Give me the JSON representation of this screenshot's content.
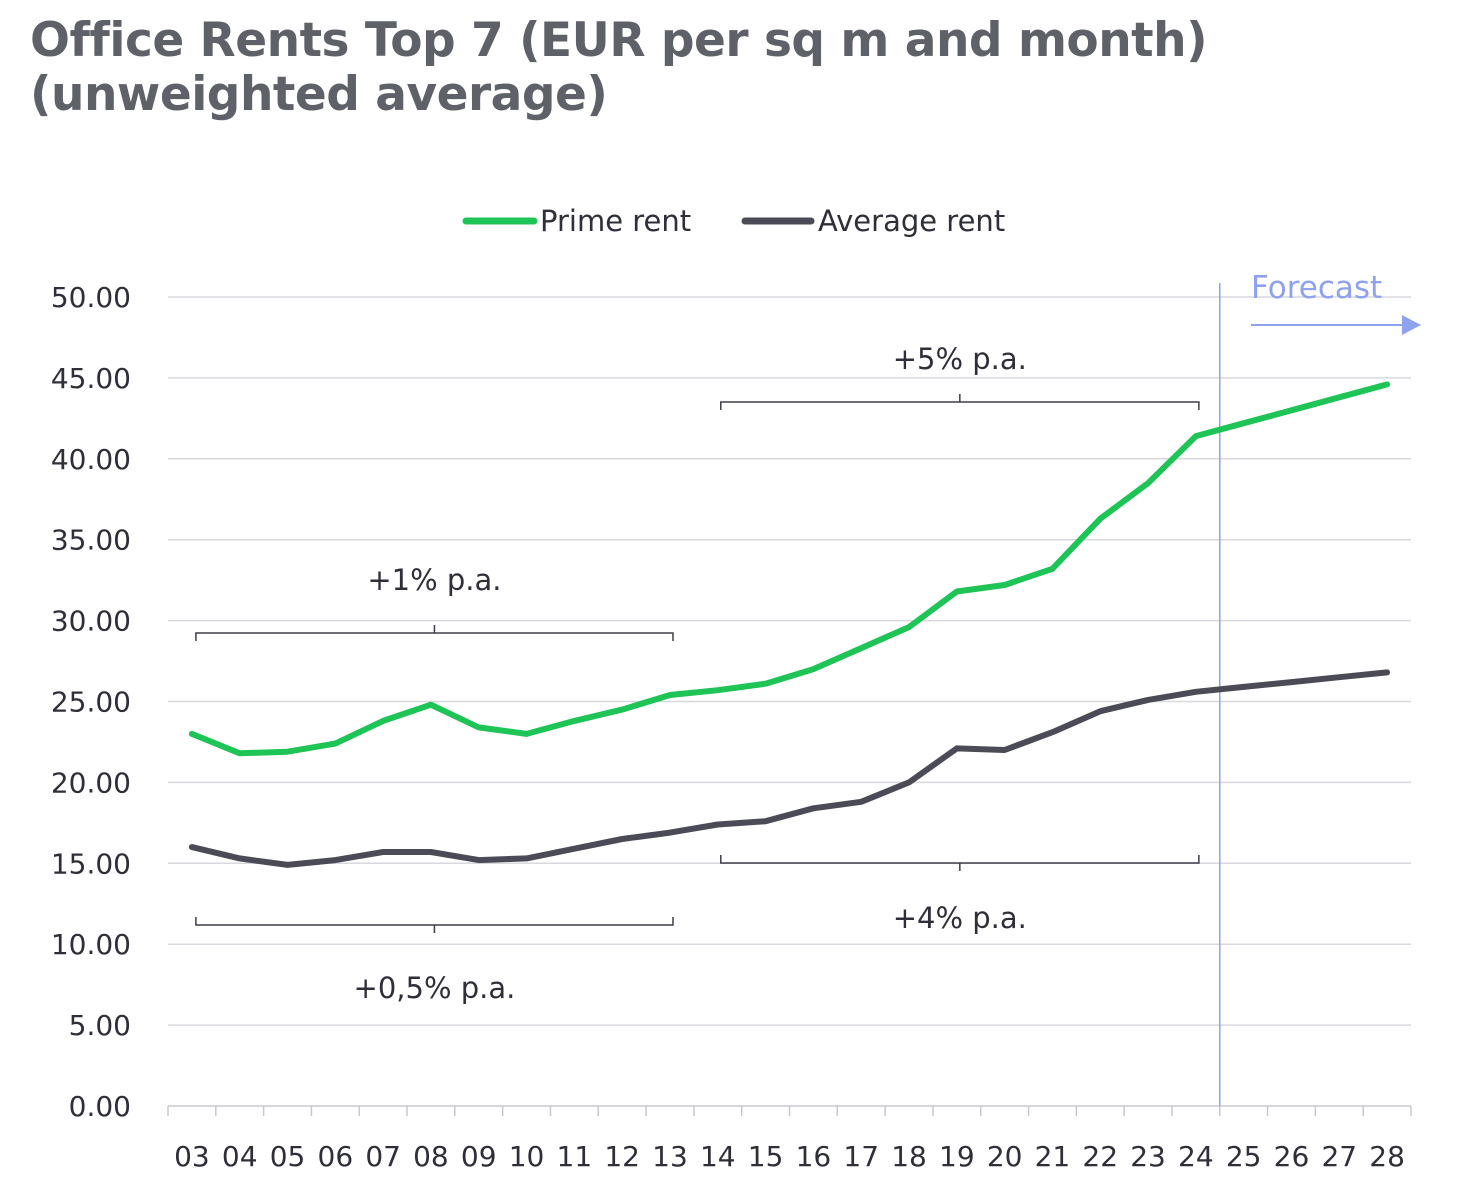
{
  "title": {
    "line1": "Office Rents Top 7 (EUR per sq m and month)",
    "line2": "(unweighted average)"
  },
  "colors": {
    "prime": "#1ec456",
    "average": "#4a4b57",
    "forecast": "#8ea2f0",
    "grid": "#d8d8de",
    "axis_text": "#2e2f38"
  },
  "chart_data": {
    "type": "line",
    "title": "Office Rents Top 7 (EUR per sq m and month) (unweighted average)",
    "xlabel": "",
    "ylabel": "",
    "ylim": [
      0,
      50
    ],
    "yticks": [
      "0.00",
      "5.00",
      "10.00",
      "15.00",
      "20.00",
      "25.00",
      "30.00",
      "35.00",
      "40.00",
      "45.00",
      "50.00"
    ],
    "categories": [
      "03",
      "04",
      "05",
      "06",
      "07",
      "08",
      "09",
      "10",
      "11",
      "12",
      "13",
      "14",
      "15",
      "16",
      "17",
      "18",
      "19",
      "20",
      "21",
      "22",
      "23",
      "24",
      "25",
      "26",
      "27",
      "28"
    ],
    "series": [
      {
        "name": "Prime rent",
        "values": [
          23.0,
          21.8,
          21.9,
          22.4,
          23.8,
          24.8,
          23.4,
          23.0,
          23.8,
          24.5,
          25.4,
          25.7,
          26.1,
          27.0,
          28.3,
          29.6,
          31.8,
          32.2,
          33.2,
          36.3,
          38.5,
          41.4,
          42.2,
          43.0,
          43.8,
          44.6
        ]
      },
      {
        "name": "Average rent",
        "values": [
          16.0,
          15.3,
          14.9,
          15.2,
          15.7,
          15.7,
          15.2,
          15.3,
          15.9,
          16.5,
          16.9,
          17.4,
          17.6,
          18.4,
          18.8,
          20.0,
          22.1,
          22.0,
          23.1,
          24.4,
          25.1,
          25.6,
          25.9,
          26.2,
          26.5,
          26.8
        ]
      }
    ],
    "annotations": [
      {
        "label": "+1% p.a.",
        "from": "03",
        "to": "13",
        "series": "Prime rent",
        "side": "below-label"
      },
      {
        "label": "+5% p.a.",
        "from": "14",
        "to": "24",
        "series": "Prime rent",
        "side": "below-label"
      },
      {
        "label": "+0,5% p.a.",
        "from": "03",
        "to": "13",
        "series": "Average rent",
        "side": "above-label"
      },
      {
        "label": "+4% p.a.",
        "from": "14",
        "to": "24",
        "series": "Average rent",
        "side": "above-label"
      }
    ],
    "forecast": {
      "label": "Forecast",
      "from": "25"
    },
    "legend": "top-center",
    "grid": true
  }
}
